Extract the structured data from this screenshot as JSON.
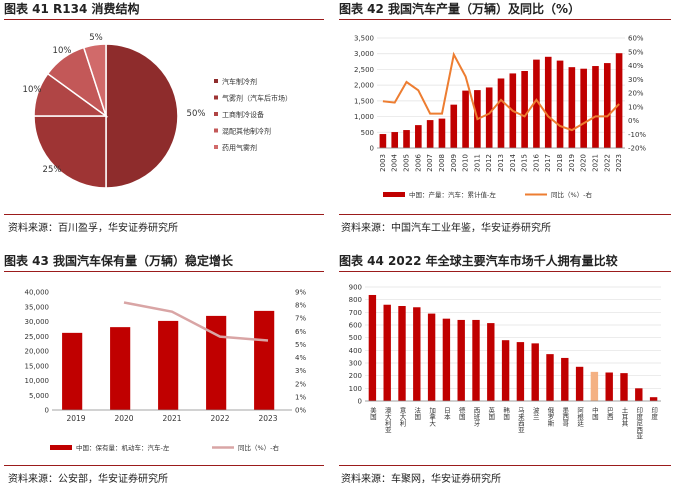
{
  "charts": [
    {
      "fig_title": "图表 41 R134 消费结构",
      "source": "资料来源：百川盈孚，华安证券研究所"
    },
    {
      "fig_title": "图表 42 我国汽车产量（万辆）及同比（%）",
      "source": "资料来源：中国汽车工业年鉴，华安证券研究所"
    },
    {
      "fig_title": "图表 43 我国汽车保有量（万辆）稳定增长",
      "source": "资料来源：公安部，华安证券研究所"
    },
    {
      "fig_title": "图表 44 2022 年全球主要汽车市场千人拥有量比较",
      "source": "资料来源：车聚网，华安证券研究所"
    }
  ],
  "chart_data": [
    {
      "type": "pie",
      "labels": [
        "汽车制冷剂",
        "气雾剂（汽车后市场）",
        "工商制冷设备",
        "混配其他制冷剂",
        "药用气雾剂"
      ],
      "values": [
        50,
        25,
        10,
        10,
        5
      ],
      "value_labels": [
        "50%",
        "25%",
        "10%",
        "10%",
        "5%"
      ],
      "colors": [
        "#8e2c2c",
        "#9e3434",
        "#b04545",
        "#c35858",
        "#d16a6a"
      ],
      "legend_position": "right"
    },
    {
      "type": "bar",
      "categories": [
        "2003",
        "2004",
        "2005",
        "2006",
        "2007",
        "2008",
        "2009",
        "2010",
        "2011",
        "2012",
        "2013",
        "2014",
        "2015",
        "2016",
        "2017",
        "2018",
        "2019",
        "2020",
        "2021",
        "2022",
        "2023"
      ],
      "series": [
        {
          "name": "中国：产量：汽车：累计值-左",
          "type": "bar",
          "axis": "left",
          "color": "#c00000",
          "values": [
            444,
            507,
            571,
            728,
            888,
            935,
            1379,
            1826,
            1842,
            1927,
            2212,
            2373,
            2450,
            2812,
            2902,
            2781,
            2572,
            2523,
            2608,
            2702,
            3016
          ]
        },
        {
          "name": "同比（%）-右",
          "type": "line",
          "axis": "right",
          "color": "#ed7d31",
          "values": [
            14,
            13,
            28,
            22,
            5,
            5,
            48,
            32,
            1,
            5,
            15,
            7,
            3,
            15,
            3,
            -4,
            -7,
            -2,
            3,
            3,
            12
          ]
        }
      ],
      "ylim_left": [
        0,
        3500
      ],
      "yticks_left": [
        0,
        500,
        1000,
        1500,
        2000,
        2500,
        3000,
        3500
      ],
      "ytick_labels_left": [
        "0",
        "500",
        "1,000",
        "1,500",
        "2,000",
        "2,500",
        "3,000",
        "3,500"
      ],
      "ylim_right": [
        -20,
        60
      ],
      "yticks_right": [
        -20,
        -10,
        0,
        10,
        20,
        30,
        40,
        50,
        60
      ],
      "ytick_labels_right": [
        "-20%",
        "-10%",
        "0%",
        "10%",
        "20%",
        "30%",
        "40%",
        "50%",
        "60%"
      ],
      "grid": true,
      "legend_position": "bottom"
    },
    {
      "type": "bar",
      "categories": [
        "2019",
        "2020",
        "2021",
        "2022",
        "2023"
      ],
      "series": [
        {
          "name": "中国：保有量：机动车：汽车-左",
          "type": "bar",
          "axis": "left",
          "color": "#c00000",
          "values": [
            26150,
            28087,
            30200,
            31900,
            33600
          ]
        },
        {
          "name": "同比（%）-右",
          "type": "line",
          "axis": "right",
          "color": "#d9a5a5",
          "values": [
            null,
            8.2,
            7.5,
            5.6,
            5.3
          ]
        }
      ],
      "ylim_left": [
        0,
        40000
      ],
      "yticks_left": [
        0,
        5000,
        10000,
        15000,
        20000,
        25000,
        30000,
        35000,
        40000
      ],
      "ytick_labels_left": [
        "0",
        "5,000",
        "10,000",
        "15,000",
        "20,000",
        "25,000",
        "30,000",
        "35,000",
        "40,000"
      ],
      "ylim_right": [
        0,
        9
      ],
      "yticks_right": [
        0,
        1,
        2,
        3,
        4,
        5,
        6,
        7,
        8,
        9
      ],
      "ytick_labels_right": [
        "0%",
        "1%",
        "2%",
        "3%",
        "4%",
        "5%",
        "6%",
        "7%",
        "8%",
        "9%"
      ],
      "grid": false,
      "legend_position": "bottom"
    },
    {
      "type": "bar",
      "categories": [
        "美国",
        "澳大利亚",
        "意大利",
        "法国",
        "加拿大",
        "日本",
        "德国",
        "西班牙",
        "英国",
        "韩国",
        "马来西亚",
        "波兰",
        "俄罗斯",
        "墨西哥",
        "阿根廷",
        "中国",
        "巴西",
        "土耳其",
        "印度尼西亚",
        "印度"
      ],
      "values": [
        837,
        760,
        750,
        740,
        690,
        650,
        640,
        640,
        615,
        480,
        465,
        455,
        370,
        340,
        270,
        230,
        225,
        220,
        100,
        30
      ],
      "colors": [
        "#c00000",
        "#c00000",
        "#c00000",
        "#c00000",
        "#c00000",
        "#c00000",
        "#c00000",
        "#c00000",
        "#c00000",
        "#c00000",
        "#c00000",
        "#c00000",
        "#c00000",
        "#c00000",
        "#c00000",
        "#f4b183",
        "#c00000",
        "#c00000",
        "#c00000",
        "#c00000"
      ],
      "ylim": [
        0,
        900
      ],
      "yticks": [
        0,
        100,
        200,
        300,
        400,
        500,
        600,
        700,
        800,
        900
      ],
      "grid": true
    }
  ]
}
